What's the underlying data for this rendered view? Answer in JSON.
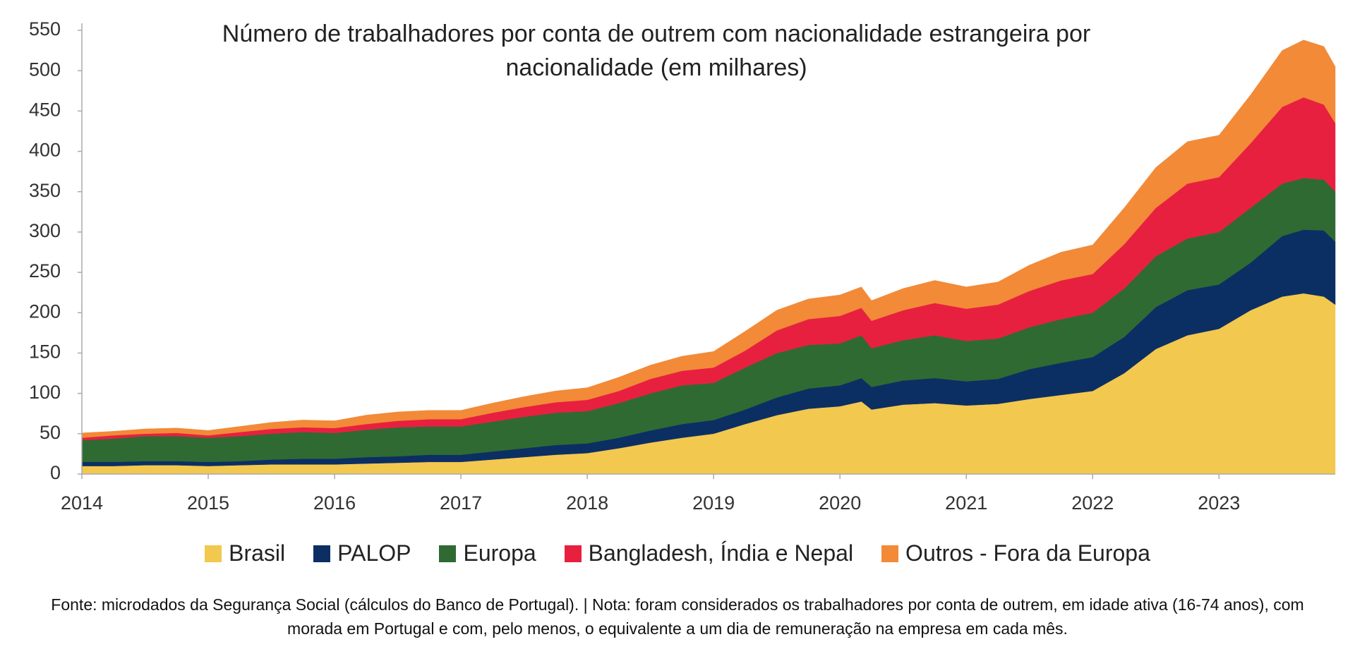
{
  "chart_data": {
    "type": "stacked_area",
    "title": "Número de trabalhadores por conta de outrem com nacionalidade estrangeira por nacionalidade (em milhares)",
    "x": [
      2014,
      2014.25,
      2014.5,
      2014.75,
      2015,
      2015.25,
      2015.5,
      2015.75,
      2016,
      2016.25,
      2016.5,
      2016.75,
      2017,
      2017.25,
      2017.5,
      2017.75,
      2018,
      2018.25,
      2018.5,
      2018.75,
      2019,
      2019.25,
      2019.5,
      2019.75,
      2020,
      2020.17,
      2020.25,
      2020.5,
      2020.75,
      2021,
      2021.25,
      2021.5,
      2021.75,
      2022,
      2022.25,
      2022.5,
      2022.75,
      2023,
      2023.25,
      2023.5,
      2023.67,
      2023.83,
      2023.92
    ],
    "series": [
      {
        "name": "Brasil",
        "color": "#f2c84f",
        "values": [
          10,
          10,
          11,
          11,
          10,
          11,
          12,
          12,
          12,
          13,
          14,
          15,
          15,
          18,
          21,
          24,
          26,
          32,
          39,
          45,
          50,
          62,
          73,
          81,
          84,
          90,
          80,
          86,
          88,
          85,
          87,
          93,
          98,
          103,
          125,
          155,
          172,
          180,
          203,
          220,
          224,
          220,
          210
        ]
      },
      {
        "name": "PALOP",
        "color": "#0c2f63",
        "values": [
          5,
          5,
          5,
          5,
          5,
          5,
          6,
          7,
          7,
          8,
          8,
          9,
          9,
          10,
          11,
          12,
          12,
          13,
          15,
          17,
          17,
          18,
          22,
          25,
          26,
          29,
          28,
          30,
          31,
          30,
          31,
          37,
          40,
          42,
          45,
          52,
          56,
          55,
          59,
          75,
          79,
          82,
          78
        ]
      },
      {
        "name": "Europa",
        "color": "#2f6a33",
        "values": [
          27,
          29,
          31,
          31,
          30,
          31,
          32,
          33,
          32,
          34,
          36,
          35,
          35,
          37,
          39,
          40,
          40,
          43,
          46,
          48,
          46,
          52,
          55,
          54,
          52,
          53,
          48,
          50,
          53,
          50,
          50,
          52,
          54,
          55,
          60,
          63,
          64,
          65,
          68,
          65,
          64,
          63,
          62
        ]
      },
      {
        "name": "Bangladesh, Índia e Nepal",
        "color": "#e8203f",
        "values": [
          3,
          4,
          3,
          4,
          3,
          5,
          6,
          6,
          6,
          7,
          8,
          9,
          9,
          11,
          12,
          13,
          14,
          15,
          18,
          18,
          19,
          21,
          28,
          32,
          34,
          34,
          34,
          37,
          40,
          40,
          42,
          45,
          48,
          48,
          55,
          60,
          68,
          68,
          80,
          95,
          100,
          93,
          85
        ]
      },
      {
        "name": "Outros - Fora da Europa",
        "color": "#f28a38",
        "values": [
          6,
          5,
          6,
          6,
          6,
          7,
          8,
          9,
          9,
          11,
          11,
          11,
          11,
          12,
          13,
          14,
          15,
          17,
          17,
          18,
          20,
          24,
          25,
          25,
          26,
          26,
          25,
          27,
          28,
          27,
          28,
          32,
          35,
          36,
          45,
          50,
          52,
          52,
          60,
          70,
          71,
          72,
          70
        ]
      }
    ],
    "xlim": [
      2014,
      2023.92
    ],
    "xticks": [
      2014,
      2015,
      2016,
      2017,
      2018,
      2019,
      2020,
      2021,
      2022,
      2023
    ],
    "ylim": [
      0,
      550
    ],
    "yticks": [
      0,
      50,
      100,
      150,
      200,
      250,
      300,
      350,
      400,
      450,
      500,
      550
    ],
    "source": "Fonte: microdados da Segurança Social (cálculos do Banco de Portugal). | Nota: foram considerados os trabalhadores por conta de outrem, em idade ativa (16-74 anos), com morada em Portugal e com, pelo menos, o equivalente a um dia de remuneração na empresa em cada mês."
  }
}
